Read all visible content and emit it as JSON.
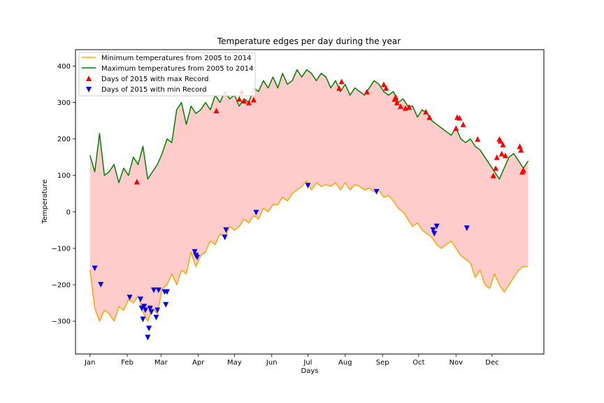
{
  "chart_data": {
    "type": "line",
    "title": "Temperature edges per day during the year",
    "xlabel": "Days",
    "ylabel": "Temperature",
    "xlim": [
      -12,
      377
    ],
    "ylim": [
      -390,
      445
    ],
    "x_ticks": [
      {
        "day": 0,
        "label": "Jan"
      },
      {
        "day": 31,
        "label": "Feb"
      },
      {
        "day": 59,
        "label": "Mar"
      },
      {
        "day": 90,
        "label": "Apr"
      },
      {
        "day": 120,
        "label": "May"
      },
      {
        "day": 151,
        "label": "Jun"
      },
      {
        "day": 181,
        "label": "Jul"
      },
      {
        "day": 212,
        "label": "Aug"
      },
      {
        "day": 243,
        "label": "Sep"
      },
      {
        "day": 273,
        "label": "Oct"
      },
      {
        "day": 304,
        "label": "Nov"
      },
      {
        "day": 334,
        "label": "Dec"
      }
    ],
    "y_ticks": [
      -300,
      -200,
      -100,
      0,
      100,
      200,
      300,
      400
    ],
    "fill_color": "#ffcccc",
    "series": [
      {
        "name": "Minimum temperatures from 2005 to 2014",
        "color": "#ffa500",
        "x": [
          0,
          4,
          8,
          12,
          16,
          20,
          24,
          28,
          32,
          36,
          40,
          44,
          48,
          52,
          56,
          60,
          64,
          68,
          72,
          76,
          80,
          84,
          88,
          92,
          96,
          100,
          104,
          108,
          112,
          116,
          120,
          124,
          128,
          132,
          136,
          140,
          144,
          148,
          152,
          156,
          160,
          164,
          168,
          172,
          176,
          180,
          184,
          188,
          192,
          196,
          200,
          204,
          208,
          212,
          216,
          220,
          224,
          228,
          232,
          236,
          240,
          244,
          248,
          252,
          256,
          260,
          264,
          268,
          272,
          276,
          280,
          284,
          288,
          292,
          296,
          300,
          304,
          308,
          312,
          316,
          320,
          324,
          328,
          332,
          336,
          340,
          344,
          348,
          352,
          356,
          360,
          364
        ],
        "values": [
          -160,
          -265,
          -300,
          -270,
          -280,
          -300,
          -260,
          -270,
          -240,
          -250,
          -230,
          -275,
          -300,
          -265,
          -280,
          -210,
          -200,
          -170,
          -200,
          -160,
          -170,
          -110,
          -150,
          -120,
          -110,
          -80,
          -90,
          -60,
          -70,
          -40,
          -50,
          -40,
          -20,
          -30,
          -10,
          -20,
          10,
          0,
          20,
          20,
          40,
          30,
          50,
          60,
          70,
          85,
          60,
          80,
          70,
          75,
          70,
          80,
          60,
          80,
          60,
          75,
          70,
          60,
          65,
          55,
          60,
          40,
          45,
          30,
          10,
          0,
          -20,
          -40,
          -30,
          -50,
          -60,
          -70,
          -90,
          -100,
          -90,
          -80,
          -100,
          -120,
          -130,
          -140,
          -180,
          -160,
          -200,
          -210,
          -170,
          -200,
          -220,
          -200,
          -180,
          -160,
          -150,
          -150
        ]
      },
      {
        "name": "Maximum temperatures from 2005 to 2014",
        "color": "#008000",
        "x": [
          0,
          4,
          8,
          12,
          16,
          20,
          24,
          28,
          32,
          36,
          40,
          44,
          48,
          52,
          56,
          60,
          64,
          68,
          72,
          76,
          80,
          84,
          88,
          92,
          96,
          100,
          104,
          108,
          112,
          116,
          120,
          124,
          128,
          132,
          136,
          140,
          144,
          148,
          152,
          156,
          160,
          164,
          168,
          172,
          176,
          180,
          184,
          188,
          192,
          196,
          200,
          204,
          208,
          212,
          216,
          220,
          224,
          228,
          232,
          236,
          240,
          244,
          248,
          252,
          256,
          260,
          264,
          268,
          272,
          276,
          280,
          284,
          288,
          292,
          296,
          300,
          304,
          308,
          312,
          316,
          320,
          324,
          328,
          332,
          336,
          340,
          344,
          348,
          352,
          356,
          360,
          364
        ],
        "values": [
          155,
          110,
          215,
          100,
          110,
          130,
          80,
          120,
          100,
          150,
          130,
          180,
          90,
          110,
          130,
          160,
          200,
          190,
          280,
          300,
          240,
          290,
          270,
          280,
          300,
          280,
          320,
          300,
          330,
          310,
          320,
          290,
          310,
          300,
          340,
          330,
          360,
          340,
          370,
          340,
          380,
          350,
          360,
          390,
          370,
          390,
          380,
          360,
          380,
          370,
          340,
          360,
          330,
          350,
          320,
          340,
          330,
          320,
          340,
          360,
          350,
          330,
          320,
          330,
          300,
          310,
          290,
          290,
          260,
          280,
          270,
          250,
          240,
          230,
          220,
          210,
          230,
          200,
          190,
          200,
          180,
          170,
          150,
          130,
          110,
          90,
          120,
          150,
          160,
          140,
          120,
          140
        ]
      }
    ],
    "scatter_series": [
      {
        "name": "Days of 2015 with max Record",
        "color": "#ff0000",
        "marker": "triangle-up",
        "points": [
          [
            39,
            83
          ],
          [
            105,
            278
          ],
          [
            124,
            310
          ],
          [
            126,
            330
          ],
          [
            128,
            305
          ],
          [
            132,
            300
          ],
          [
            136,
            308
          ],
          [
            207,
            340
          ],
          [
            209,
            358
          ],
          [
            230,
            330
          ],
          [
            244,
            350
          ],
          [
            246,
            340
          ],
          [
            253,
            310
          ],
          [
            254,
            315
          ],
          [
            255,
            300
          ],
          [
            258,
            290
          ],
          [
            262,
            285
          ],
          [
            265,
            288
          ],
          [
            279,
            275
          ],
          [
            282,
            260
          ],
          [
            304,
            230
          ],
          [
            305,
            260
          ],
          [
            307,
            258
          ],
          [
            310,
            240
          ],
          [
            322,
            200
          ],
          [
            335,
            100
          ],
          [
            337,
            120
          ],
          [
            338,
            150
          ],
          [
            340,
            200
          ],
          [
            341,
            195
          ],
          [
            342,
            160
          ],
          [
            343,
            185
          ],
          [
            345,
            155
          ],
          [
            357,
            180
          ],
          [
            358,
            170
          ],
          [
            359,
            110
          ],
          [
            360,
            115
          ]
        ]
      },
      {
        "name": "Days of 2015 with min Record",
        "color": "#0000ff",
        "marker": "triangle-down",
        "points": [
          [
            4,
            -155
          ],
          [
            9,
            -200
          ],
          [
            33,
            -235
          ],
          [
            42,
            -240
          ],
          [
            43,
            -265
          ],
          [
            44,
            -295
          ],
          [
            45,
            -260
          ],
          [
            46,
            -270
          ],
          [
            48,
            -345
          ],
          [
            49,
            -320
          ],
          [
            50,
            -265
          ],
          [
            51,
            -275
          ],
          [
            53,
            -215
          ],
          [
            55,
            -290
          ],
          [
            56,
            -270
          ],
          [
            57,
            -215
          ],
          [
            62,
            -220
          ],
          [
            63,
            -255
          ],
          [
            64,
            -220
          ],
          [
            87,
            -110
          ],
          [
            88,
            -120
          ],
          [
            89,
            -125
          ],
          [
            112,
            -70
          ],
          [
            113,
            -50
          ],
          [
            138,
            -2
          ],
          [
            181,
            72
          ],
          [
            238,
            55
          ],
          [
            285,
            -50
          ],
          [
            286,
            -60
          ],
          [
            288,
            -40
          ],
          [
            313,
            -45
          ]
        ]
      }
    ],
    "legend_position": "upper-left",
    "grid": false
  }
}
